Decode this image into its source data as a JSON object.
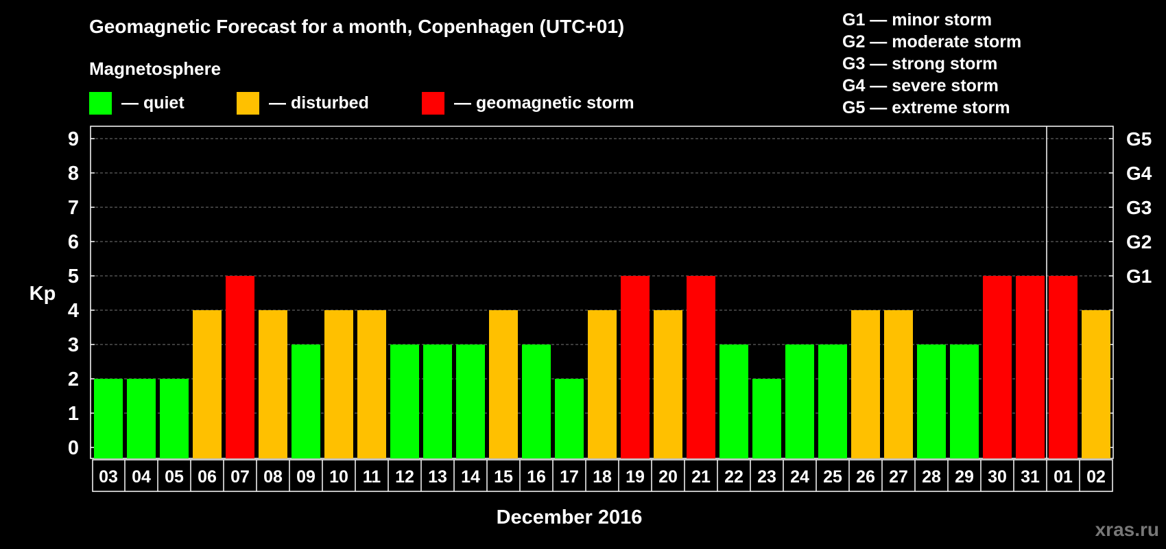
{
  "chart_data": {
    "type": "bar",
    "title": "Geomagnetic Forecast for a month, Copenhagen (UTC+01)",
    "subtitle": "Magnetosphere",
    "ylabel": "Kp",
    "xlabel": "December 2016",
    "ylim": [
      0,
      9
    ],
    "yticks": [
      0,
      1,
      2,
      3,
      4,
      5,
      6,
      7,
      8,
      9
    ],
    "grid": true,
    "legend": [
      {
        "label": "— quiet",
        "color": "#00ff00"
      },
      {
        "label": "— disturbed",
        "color": "#ffc000"
      },
      {
        "label": "— geomagnetic storm",
        "color": "#ff0000"
      }
    ],
    "storm_scale": [
      "G1 — minor storm",
      "G2 — moderate storm",
      "G3 — strong storm",
      "G4 — severe storm",
      "G5 — extreme storm"
    ],
    "right_axis": [
      {
        "kp": 5,
        "label": "G1"
      },
      {
        "kp": 6,
        "label": "G2"
      },
      {
        "kp": 7,
        "label": "G3"
      },
      {
        "kp": 8,
        "label": "G4"
      },
      {
        "kp": 9,
        "label": "G5"
      }
    ],
    "categories": [
      "03",
      "04",
      "05",
      "06",
      "07",
      "08",
      "09",
      "10",
      "11",
      "12",
      "13",
      "14",
      "15",
      "16",
      "17",
      "18",
      "19",
      "20",
      "21",
      "22",
      "23",
      "24",
      "25",
      "26",
      "27",
      "28",
      "29",
      "30",
      "31",
      "01",
      "02"
    ],
    "values": [
      2,
      2,
      2,
      4,
      5,
      4,
      3,
      4,
      4,
      3,
      3,
      3,
      4,
      3,
      2,
      4,
      5,
      4,
      5,
      3,
      2,
      3,
      3,
      4,
      4,
      3,
      3,
      5,
      5,
      5,
      4
    ],
    "colors": {
      "quiet": "#00ff00",
      "disturbed": "#ffc000",
      "storm": "#ff0000"
    },
    "month_boundary_after": "31"
  },
  "watermark": "xras.ru"
}
